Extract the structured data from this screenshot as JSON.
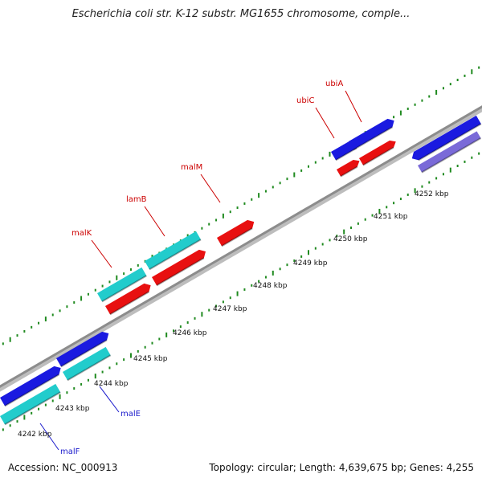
{
  "title": "Escherichia coli str. K-12 substr. MG1655 chromosome, comple...",
  "footer": {
    "accession": "Accession: NC_000913",
    "summary": "Topology: circular; Length: 4,639,675 bp; Genes: 4,255"
  },
  "axis": {
    "unit": "kbp",
    "ticks": [
      {
        "label": "4242 kbp"
      },
      {
        "label": "4243 kbp"
      },
      {
        "label": "4244 kbp"
      },
      {
        "label": "4245 kbp"
      },
      {
        "label": "4246 kbp"
      },
      {
        "label": "4247 kbp"
      },
      {
        "label": "4248 kbp"
      },
      {
        "label": "4249 kbp"
      },
      {
        "label": "4250 kbp"
      },
      {
        "label": "4251 kbp"
      },
      {
        "label": "4252 kbp"
      }
    ]
  },
  "colors": {
    "forward_gene": "#1a1ae0",
    "reverse_gene": "#22cccc",
    "forward_cds": "#e81010",
    "reverse_cds": "#7a6ad8",
    "backbone": "#8c8c8c",
    "tick": "#1f8a1f",
    "label_forward": "#cc0000",
    "label_reverse": "#1a1acc"
  },
  "labels": {
    "forward": [
      {
        "name": "ubiA"
      },
      {
        "name": "ubiC"
      },
      {
        "name": "malM"
      },
      {
        "name": "lamB"
      },
      {
        "name": "malK"
      }
    ],
    "reverse": [
      {
        "name": "malE"
      },
      {
        "name": "malF"
      }
    ]
  }
}
